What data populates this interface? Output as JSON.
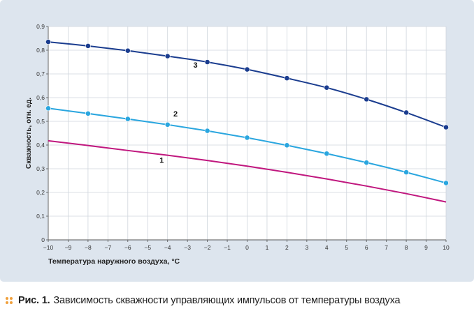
{
  "chart_data": {
    "type": "line",
    "xlabel": "Температура наружного воздуха, °C",
    "ylabel": "Скважность, отн. ед.",
    "xlim": [
      -10,
      10
    ],
    "ylim": [
      0,
      0.9
    ],
    "x_ticks": [
      -10,
      -9,
      -8,
      -7,
      -6,
      -5,
      -4,
      -3,
      -2,
      -1,
      0,
      1,
      2,
      3,
      4,
      5,
      6,
      7,
      8,
      9,
      10
    ],
    "x_tick_labels": [
      "−10",
      "−9",
      "−8",
      "−7",
      "−6",
      "−5",
      "−4",
      "−3",
      "−2",
      "−1",
      "0",
      "1",
      "2",
      "3",
      "4",
      "5",
      "6",
      "7",
      "8",
      "9",
      "10"
    ],
    "y_ticks": [
      0,
      0.1,
      0.2,
      0.3,
      0.4,
      0.5,
      0.6,
      0.7,
      0.8,
      0.9
    ],
    "y_tick_labels": [
      "0",
      "0,1",
      "0,2",
      "0,3",
      "0,4",
      "0,5",
      "0,6",
      "0,7",
      "0,8",
      "0,9"
    ],
    "grid": true,
    "series": [
      {
        "name": "1",
        "color": "#c0177e",
        "markers": false,
        "x": [
          -10,
          -8,
          -6,
          -4,
          -2,
          0,
          2,
          4,
          6,
          8,
          10
        ],
        "y": [
          0.418,
          0.398,
          0.377,
          0.357,
          0.335,
          0.311,
          0.285,
          0.257,
          0.227,
          0.195,
          0.16
        ]
      },
      {
        "name": "2",
        "color": "#2aa6df",
        "markers": true,
        "x": [
          -10,
          -8,
          -6,
          -4,
          -2,
          0,
          2,
          4,
          6,
          8,
          10
        ],
        "y": [
          0.555,
          0.533,
          0.51,
          0.486,
          0.46,
          0.431,
          0.399,
          0.364,
          0.326,
          0.285,
          0.24
        ]
      },
      {
        "name": "3",
        "color": "#1b3d8f",
        "markers": true,
        "x": [
          -10,
          -8,
          -6,
          -4,
          -2,
          0,
          2,
          4,
          6,
          8,
          10
        ],
        "y": [
          0.835,
          0.818,
          0.798,
          0.775,
          0.75,
          0.719,
          0.682,
          0.642,
          0.593,
          0.537,
          0.475
        ]
      }
    ],
    "series_labels": [
      {
        "text": "1",
        "x": -4.3,
        "y": 0.325
      },
      {
        "text": "2",
        "x": -3.6,
        "y": 0.52
      },
      {
        "text": "3",
        "x": -2.6,
        "y": 0.727
      }
    ]
  },
  "colors": {
    "panel_background": "#dde5ee",
    "plot_background": "#ffffff",
    "grid": "#cfd5dc",
    "caption_bullet": "#f0a03c"
  },
  "caption": {
    "label": "Рис. 1.",
    "text": "Зависимость скважности управляющих импульсов от температуры воздуха"
  }
}
